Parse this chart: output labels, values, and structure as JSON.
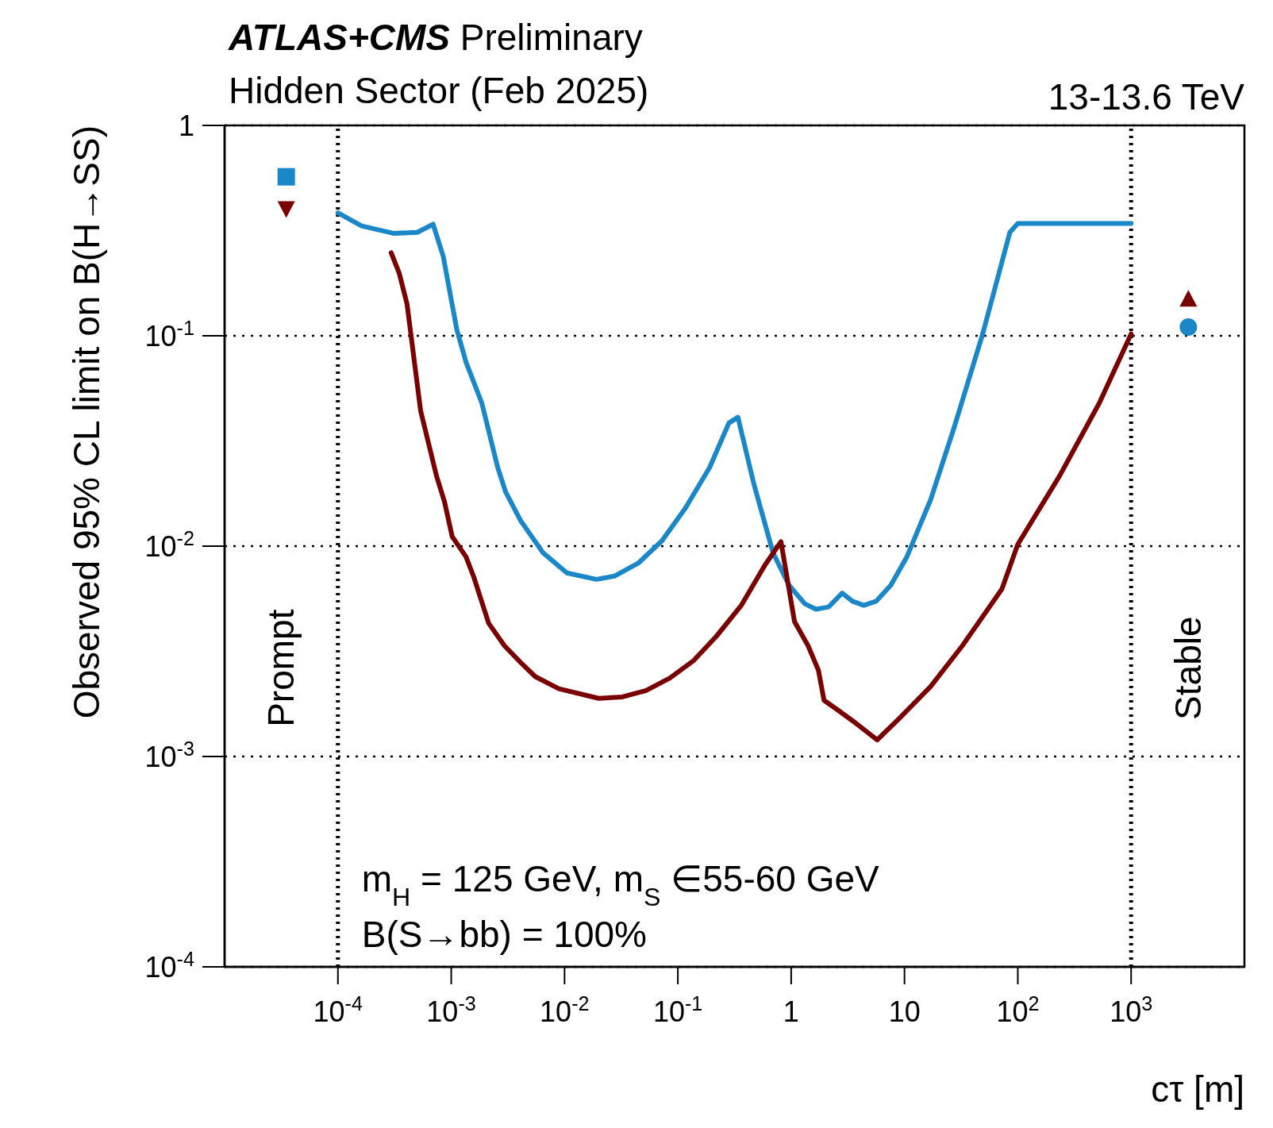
{
  "chart_data": {
    "type": "line",
    "title": "ATLAS+CMS Preliminary",
    "subtitle": "Hidden Sector (Feb 2025)",
    "xlabel": "cτ [m]",
    "ylabel": "Observed 95% CL limit on B(H→SS)",
    "log": "xy",
    "grid": "y",
    "line_style": "solid",
    "marker": "none",
    "xlim": [
      1e-05,
      10000
    ],
    "ylim": [
      0.0001,
      1
    ],
    "xticks": [
      {
        "value": 0.0001,
        "label": "10$^{-4}$"
      },
      {
        "value": 0.001,
        "label": "10$^{-3}$"
      },
      {
        "value": 0.01,
        "label": "10$^{-2}$"
      },
      {
        "value": 0.1,
        "label": "10$^{-1}$"
      },
      1,
      10,
      {
        "value": 100,
        "label": "10$^{2}$"
      },
      {
        "value": 1000,
        "label": "10$^{3}$"
      }
    ],
    "yticks": [
      {
        "value": 0.0001,
        "label": "10$^{-4}$"
      },
      {
        "value": 0.001,
        "label": "10$^{-3}$"
      },
      {
        "value": 0.01,
        "label": "10$^{-2}$"
      },
      {
        "value": 0.1,
        "label": "10$^{-1}$"
      },
      1
    ],
    "series": [
      {
        "color": "#1a87c9",
        "x": [
          0.0001,
          0.000162,
          0.000309,
          0.000501,
          0.000692,
          0.000851,
          0.00112,
          0.00135,
          0.00186,
          0.00257,
          0.00302,
          0.00407,
          0.00646,
          0.0105,
          0.0191,
          0.0275,
          0.0447,
          0.0724,
          0.117,
          0.191,
          0.282,
          0.339,
          0.468,
          0.692,
          0.955,
          1.32,
          1.66,
          2.14,
          2.82,
          3.47,
          4.37,
          5.62,
          7.59,
          10.5,
          17,
          27.5,
          49,
          85.1,
          100,
          1000
        ],
        "values": [
          0.384,
          0.333,
          0.307,
          0.31,
          0.339,
          0.238,
          0.107,
          0.075,
          0.048,
          0.0237,
          0.0181,
          0.0133,
          0.0093,
          0.00746,
          0.00695,
          0.0072,
          0.0083,
          0.0106,
          0.0152,
          0.0237,
          0.0385,
          0.041,
          0.0198,
          0.0093,
          0.00653,
          0.00532,
          0.00501,
          0.00514,
          0.00598,
          0.00547,
          0.00523,
          0.00547,
          0.00653,
          0.0089,
          0.0166,
          0.0368,
          0.102,
          0.31,
          0.342,
          0.342
        ]
      },
      {
        "color": "#7a0000",
        "x": [
          0.000295,
          0.000347,
          0.000407,
          0.000537,
          0.000741,
          0.000871,
          0.00102,
          0.00135,
          0.00158,
          0.00214,
          0.00295,
          0.00407,
          0.0055,
          0.00891,
          0.02,
          0.0324,
          0.0525,
          0.0851,
          0.138,
          0.219,
          0.363,
          0.589,
          0.813,
          1.07,
          1.41,
          1.74,
          1.95,
          2.51,
          3.72,
          5.75,
          8.91,
          17,
          32.4,
          72.4,
          100,
          234,
          525,
          1000
        ],
        "values": [
          0.248,
          0.199,
          0.142,
          0.044,
          0.0216,
          0.0163,
          0.0111,
          0.0089,
          0.00714,
          0.0043,
          0.00336,
          0.00281,
          0.0024,
          0.0021,
          0.00189,
          0.00192,
          0.00206,
          0.00236,
          0.00286,
          0.00373,
          0.00523,
          0.00815,
          0.0105,
          0.00438,
          0.00336,
          0.00257,
          0.00185,
          0.00168,
          0.00144,
          0.0012,
          0.00151,
          0.00215,
          0.00336,
          0.00625,
          0.0102,
          0.0216,
          0.048,
          0.102
        ]
      },
      {
        "type": "scatter",
        "color": "#1a87c9",
        "marker": "square",
        "x": [
          3.5e-05
        ],
        "values": [
          0.57
        ]
      },
      {
        "type": "scatter",
        "color": "#7a0000",
        "marker": "triangle-down",
        "x": [
          3.5e-05
        ],
        "values": [
          0.4
        ]
      },
      {
        "type": "scatter",
        "color": "#7a0000",
        "marker": "triangle",
        "x": [
          3200
        ],
        "values": [
          0.15
        ]
      },
      {
        "type": "scatter",
        "color": "#1a87c9",
        "marker": "circle",
        "x": [
          3200
        ],
        "values": [
          0.11
        ]
      }
    ],
    "ref_lines": [
      {
        "axis": "x",
        "value": 0.0001,
        "color": "#000000",
        "line_style": "dotted"
      },
      {
        "axis": "x",
        "value": 1000,
        "color": "#000000",
        "line_style": "dotted"
      }
    ],
    "annotations": [
      "13-13.6 TeV",
      "m$_{H}$ = 125 GeV, m$_{S}$ ∈55-60 GeV",
      "B(S→bb) = 100%",
      "Prompt",
      "Stable"
    ]
  }
}
